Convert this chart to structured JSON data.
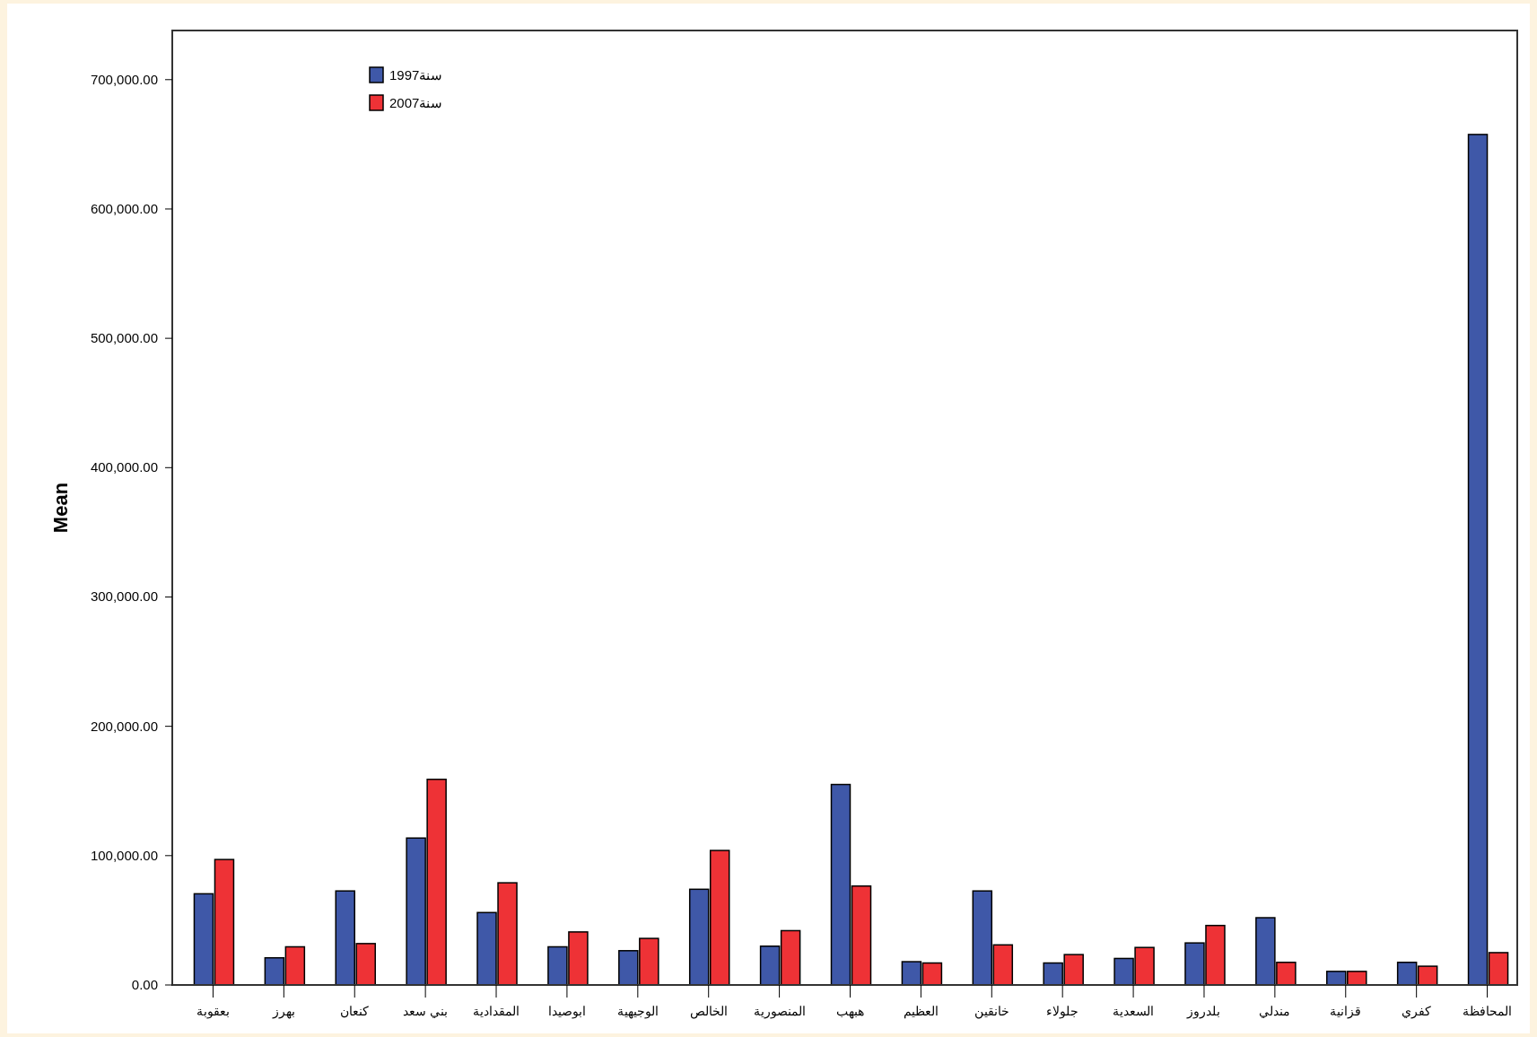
{
  "chart_data": {
    "type": "bar",
    "ylabel": "Mean",
    "categories": [
      "بعقوبة",
      "بهرز",
      "كنعان",
      "بني سعد",
      "المقدادية",
      "ابوصيدا",
      "الوجيهية",
      "الخالص",
      "المنصورية",
      "هبهب",
      "العظيم",
      "خانقين",
      "جلولاء",
      "السعدية",
      "بلدروز",
      "مندلي",
      "قزانية",
      "كفري",
      "المحافظة"
    ],
    "series": [
      {
        "name": "سنة1997",
        "color": "#3f58a8",
        "values": [
          70500,
          21000,
          72700,
          113600,
          56000,
          29500,
          26500,
          74000,
          30000,
          155000,
          18000,
          72700,
          17000,
          20500,
          32500,
          52000,
          10500,
          17500,
          657600
        ]
      },
      {
        "name": "سنة2007",
        "color": "#ee3236",
        "values": [
          97000,
          29500,
          32000,
          159000,
          79000,
          41000,
          36000,
          104000,
          42000,
          76500,
          17000,
          31000,
          23500,
          29000,
          46000,
          17500,
          10500,
          14500,
          25000
        ]
      }
    ],
    "ylim": [
      0,
      738000
    ],
    "yticks": [
      {
        "value": 0,
        "label": "0.00"
      },
      {
        "value": 100000,
        "label": "100,000.00"
      },
      {
        "value": 200000,
        "label": "200,000.00"
      },
      {
        "value": 300000,
        "label": "300,000.00"
      },
      {
        "value": 400000,
        "label": "400,000.00"
      },
      {
        "value": 500000,
        "label": "500,000.00"
      },
      {
        "value": 600000,
        "label": "600,000.00"
      },
      {
        "value": 700000,
        "label": "700,000.00"
      }
    ],
    "grid": false,
    "legend": "top left"
  }
}
